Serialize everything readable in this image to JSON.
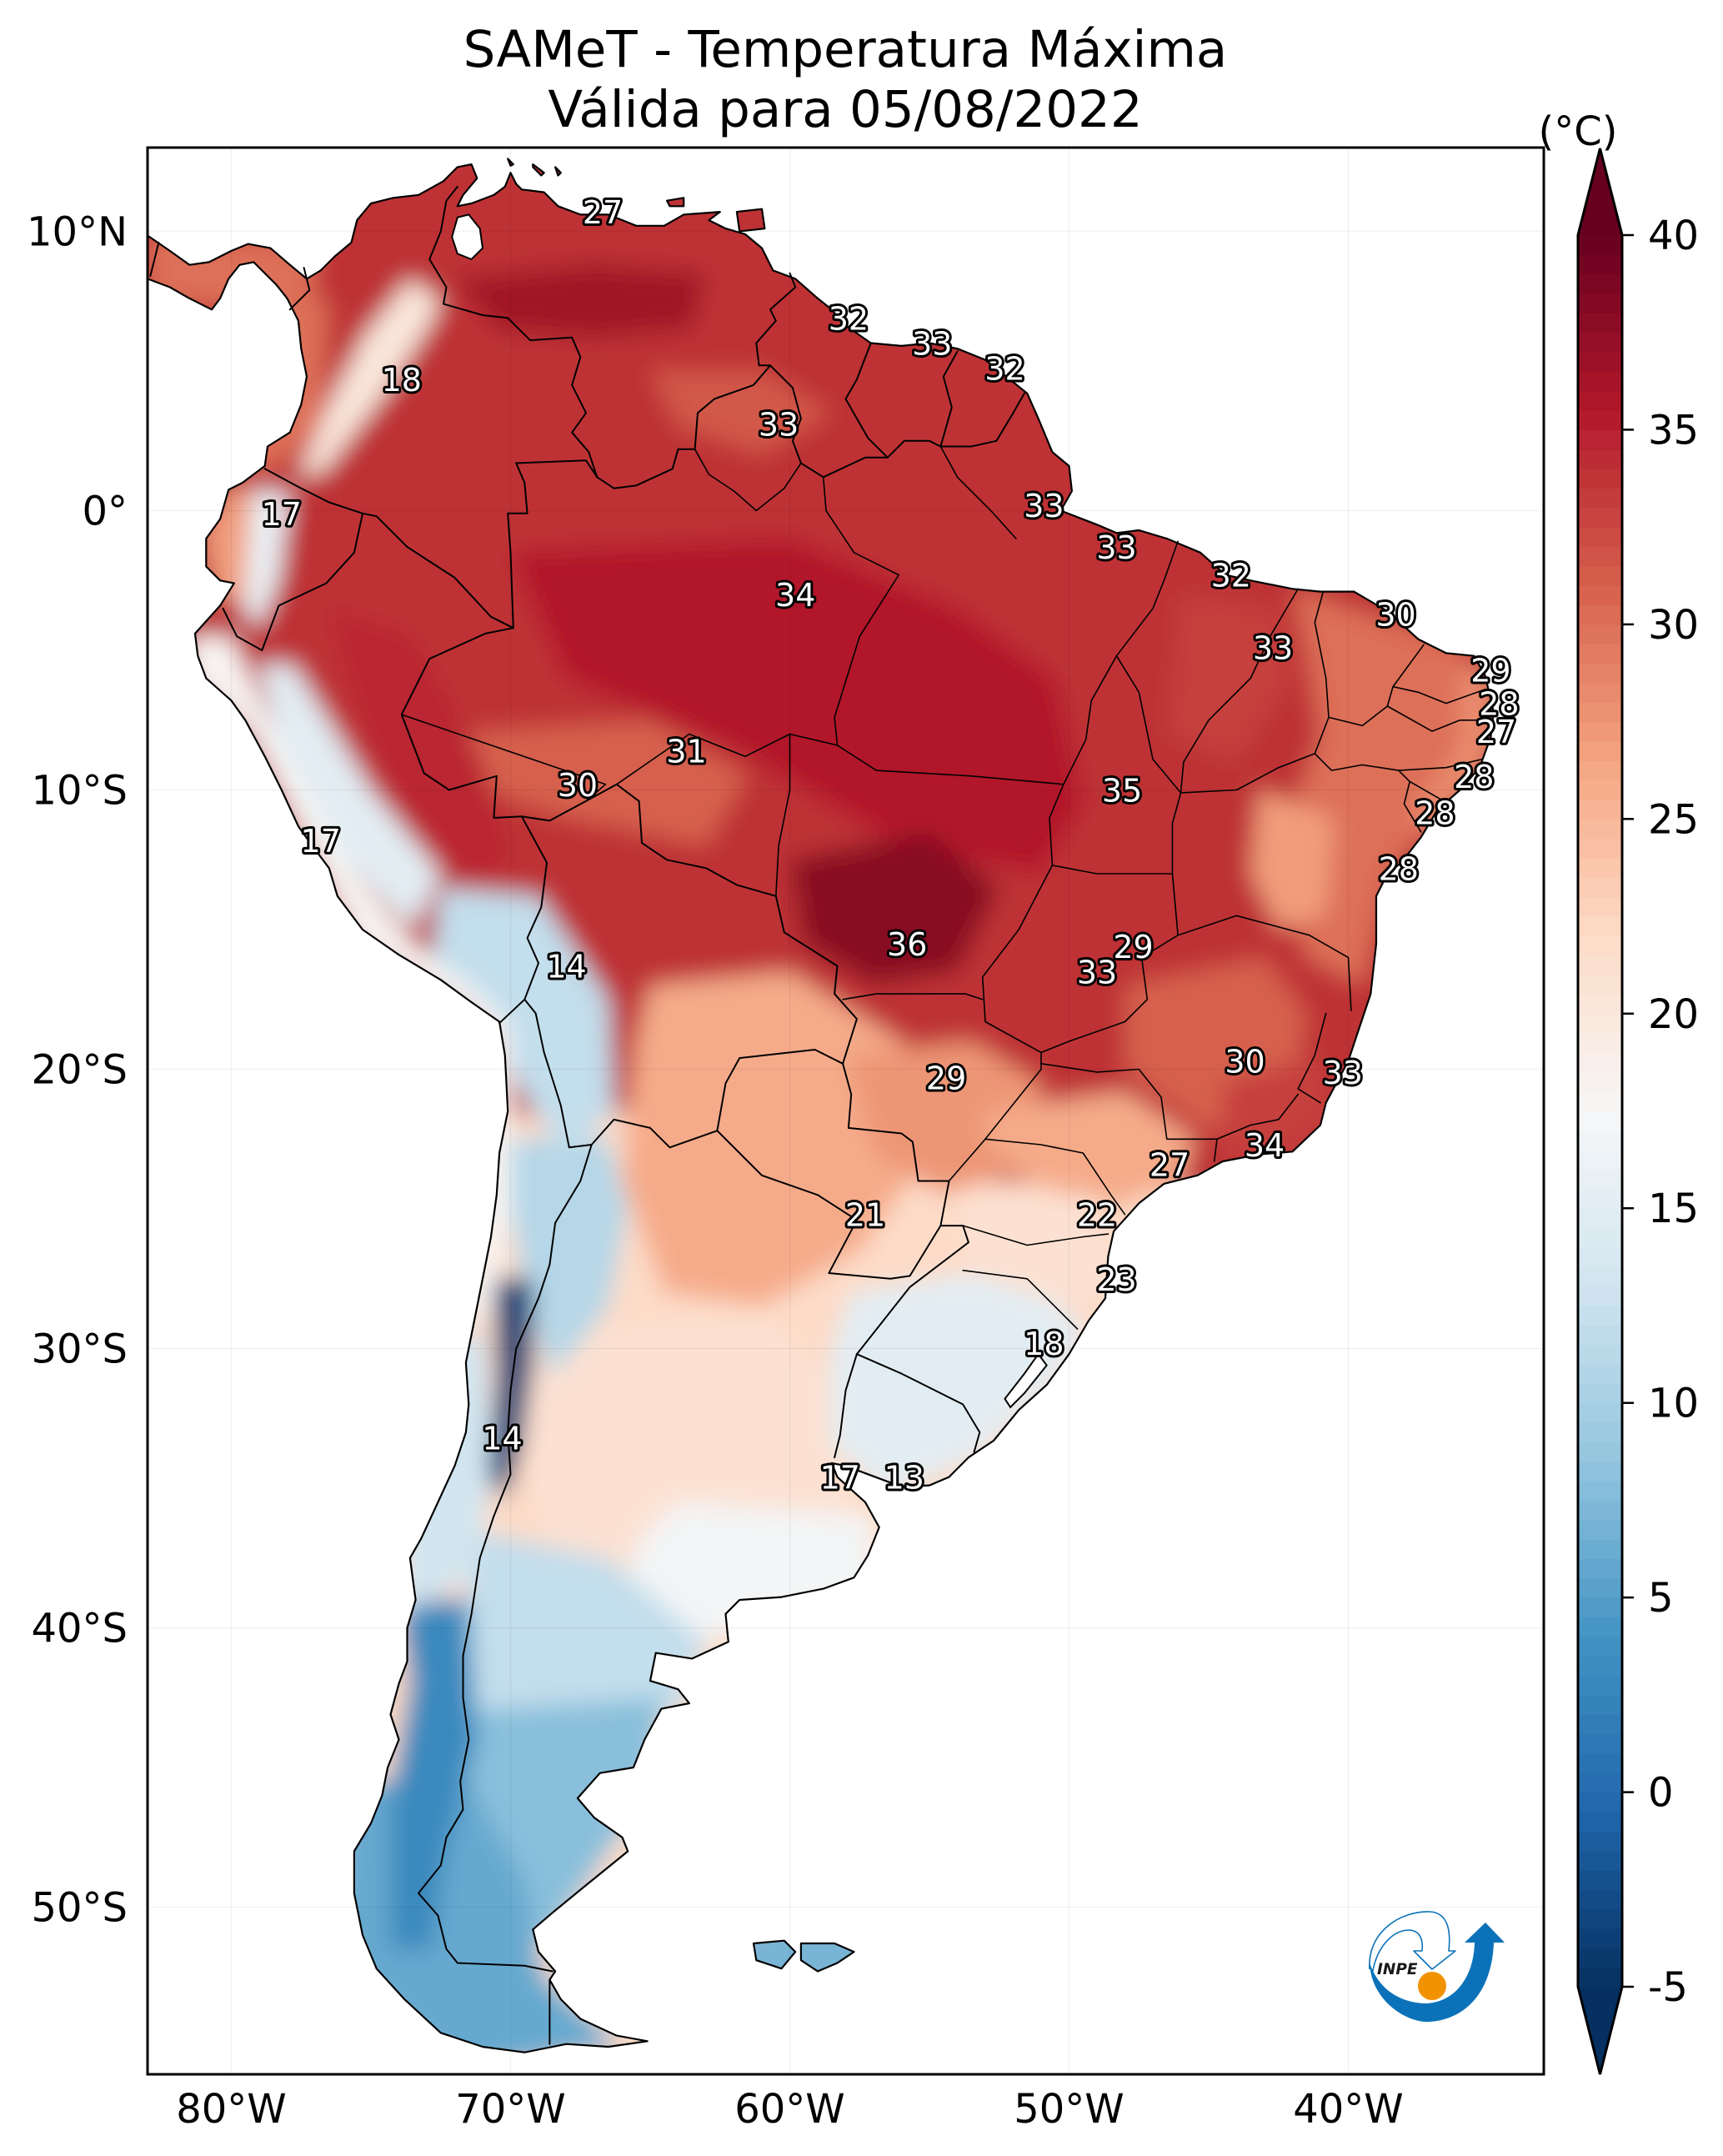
{
  "title": {
    "line1": "SAMeT - Temperatura Máxima",
    "line2": "Válida para 05/08/2022"
  },
  "axes": {
    "extent": {
      "lon_min": -83,
      "lon_max": -33,
      "lat_min": -56,
      "lat_max": 13
    },
    "gridlines": true,
    "lat_ticks": [
      {
        "value": 10,
        "label": "10°N"
      },
      {
        "value": 0,
        "label": "0°"
      },
      {
        "value": -10,
        "label": "10°S"
      },
      {
        "value": -20,
        "label": "20°S"
      },
      {
        "value": -30,
        "label": "30°S"
      },
      {
        "value": -40,
        "label": "40°S"
      },
      {
        "value": -50,
        "label": "50°S"
      }
    ],
    "lon_ticks": [
      {
        "value": -80,
        "label": "80°W"
      },
      {
        "value": -70,
        "label": "70°W"
      },
      {
        "value": -60,
        "label": "60°W"
      },
      {
        "value": -50,
        "label": "50°W"
      },
      {
        "value": -40,
        "label": "40°W"
      }
    ]
  },
  "colorbar": {
    "label": "(°C)",
    "min": -5,
    "max": 40,
    "step": 0.5,
    "extend": "both",
    "colormap": "RdBu_r",
    "colormap_stops": [
      "#053061",
      "#2166ac",
      "#4393c3",
      "#92c5de",
      "#d1e5f0",
      "#f7f7f7",
      "#fddbc7",
      "#f4a582",
      "#d6604d",
      "#b2182b",
      "#67001f"
    ],
    "ticks": [
      {
        "value": -5,
        "label": "-5"
      },
      {
        "value": 0,
        "label": "0"
      },
      {
        "value": 5,
        "label": "5"
      },
      {
        "value": 10,
        "label": "10"
      },
      {
        "value": 15,
        "label": "15"
      },
      {
        "value": 20,
        "label": "20"
      },
      {
        "value": 25,
        "label": "25"
      },
      {
        "value": 30,
        "label": "30"
      },
      {
        "value": 35,
        "label": "35"
      },
      {
        "value": 40,
        "label": "40"
      }
    ]
  },
  "stations": [
    {
      "value": 27,
      "lon": -66.7,
      "lat": 10.7
    },
    {
      "value": 18,
      "lon": -73.9,
      "lat": 4.7
    },
    {
      "value": 32,
      "lon": -57.9,
      "lat": 6.9
    },
    {
      "value": 33,
      "lon": -54.9,
      "lat": 6.0
    },
    {
      "value": 32,
      "lon": -52.3,
      "lat": 5.1
    },
    {
      "value": 33,
      "lon": -60.4,
      "lat": 3.1
    },
    {
      "value": 17,
      "lon": -78.2,
      "lat": -0.1
    },
    {
      "value": 33,
      "lon": -50.9,
      "lat": 0.2
    },
    {
      "value": 33,
      "lon": -48.3,
      "lat": -1.3
    },
    {
      "value": 34,
      "lon": -59.8,
      "lat": -3.0
    },
    {
      "value": 32,
      "lon": -44.2,
      "lat": -2.3
    },
    {
      "value": 30,
      "lon": -38.3,
      "lat": -3.7
    },
    {
      "value": 33,
      "lon": -42.7,
      "lat": -4.9
    },
    {
      "value": 29,
      "lon": -34.9,
      "lat": -5.7
    },
    {
      "value": 28,
      "lon": -34.6,
      "lat": -6.9
    },
    {
      "value": 27,
      "lon": -34.7,
      "lat": -7.9
    },
    {
      "value": 31,
      "lon": -63.7,
      "lat": -8.6
    },
    {
      "value": 30,
      "lon": -67.6,
      "lat": -9.8
    },
    {
      "value": 35,
      "lon": -48.1,
      "lat": -10.0
    },
    {
      "value": 28,
      "lon": -35.5,
      "lat": -9.5
    },
    {
      "value": 28,
      "lon": -36.9,
      "lat": -10.8
    },
    {
      "value": 17,
      "lon": -76.8,
      "lat": -11.8
    },
    {
      "value": 28,
      "lon": -38.2,
      "lat": -12.8
    },
    {
      "value": 36,
      "lon": -55.8,
      "lat": -15.5
    },
    {
      "value": 29,
      "lon": -47.7,
      "lat": -15.6
    },
    {
      "value": 14,
      "lon": -68.0,
      "lat": -16.3
    },
    {
      "value": 33,
      "lon": -49.0,
      "lat": -16.5
    },
    {
      "value": 30,
      "lon": -43.7,
      "lat": -19.7
    },
    {
      "value": 33,
      "lon": -40.2,
      "lat": -20.1
    },
    {
      "value": 29,
      "lon": -54.4,
      "lat": -20.3
    },
    {
      "value": 34,
      "lon": -43.0,
      "lat": -22.7
    },
    {
      "value": 27,
      "lon": -46.4,
      "lat": -23.4
    },
    {
      "value": 21,
      "lon": -57.3,
      "lat": -25.2
    },
    {
      "value": 22,
      "lon": -49.0,
      "lat": -25.2
    },
    {
      "value": 23,
      "lon": -48.3,
      "lat": -27.5
    },
    {
      "value": 18,
      "lon": -50.9,
      "lat": -29.8
    },
    {
      "value": 14,
      "lon": -70.3,
      "lat": -33.2
    },
    {
      "value": 17,
      "lon": -58.2,
      "lat": -34.6
    },
    {
      "value": 13,
      "lon": -55.9,
      "lat": -34.6
    }
  ],
  "field": {
    "base_temp": 34,
    "regions": [
      {
        "id": "minas",
        "temp": 31
      },
      {
        "id": "southern_cone",
        "temp": 22
      },
      {
        "id": "chaco",
        "temp": 26
      },
      {
        "id": "ms_parana",
        "temp": 27.5
      },
      {
        "id": "sao_paulo",
        "temp": 26
      },
      {
        "id": "southeast_coast",
        "temp": 33
      },
      {
        "id": "parana_sc",
        "temp": 21
      },
      {
        "id": "rio_grande_sul",
        "temp": 15
      },
      {
        "id": "pampas",
        "temp": 21
      },
      {
        "id": "pampas_south",
        "temp": 17
      },
      {
        "id": "north_patagonia",
        "temp": 12
      },
      {
        "id": "patagonia",
        "temp": 8
      },
      {
        "id": "patagonia_south",
        "temp": 6
      },
      {
        "id": "chile_south_andes",
        "temp": 3
      },
      {
        "id": "central_chile",
        "temp": 13
      },
      {
        "id": "andes_arg_north",
        "temp": 11
      },
      {
        "id": "aconcagua",
        "temp": -4
      },
      {
        "id": "altiplano",
        "temp": 12
      },
      {
        "id": "peru_andes",
        "temp": 15
      },
      {
        "id": "pacific_coast",
        "temp": 18
      },
      {
        "id": "ecuador_andes",
        "temp": 16
      },
      {
        "id": "ecuador_coast",
        "temp": 27
      },
      {
        "id": "colombia_andes",
        "temp": 20
      },
      {
        "id": "panama",
        "temp": 30
      },
      {
        "id": "colombia_pacific",
        "temp": 30
      },
      {
        "id": "amazon_core",
        "temp": 35.5
      },
      {
        "id": "mato_grosso_hot",
        "temp": 38
      },
      {
        "id": "llanos_hot",
        "temp": 36.5
      },
      {
        "id": "guiana_highlands",
        "temp": 31.5
      },
      {
        "id": "acre_rondonia",
        "temp": 31
      },
      {
        "id": "peru_lowlands",
        "temp": 34.5
      },
      {
        "id": "northeast",
        "temp": 30
      },
      {
        "id": "maranhao_piaui",
        "temp": 33
      },
      {
        "id": "bahia_interior",
        "temp": 27
      },
      {
        "id": "ne_coastal_strip",
        "temp": 28
      },
      {
        "id": "falklands",
        "temp": 7
      }
    ]
  },
  "logo": {
    "text": "INPE",
    "colors": {
      "blue": "#0b72b9",
      "orange": "#f39200"
    }
  }
}
